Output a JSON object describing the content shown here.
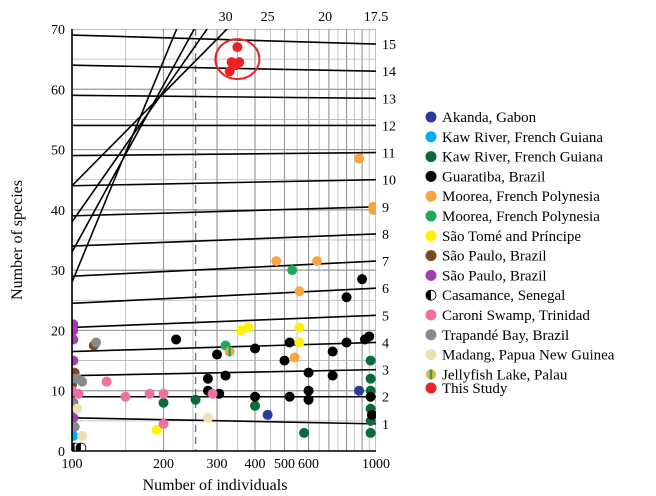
{
  "chart_data": {
    "type": "scatter",
    "xlabel": "Number of individuals",
    "ylabel": "Number of species",
    "x_scale": "log",
    "xlim": [
      100,
      1000
    ],
    "ylim": [
      0,
      70
    ],
    "x_ticks": [
      100,
      200,
      300,
      400,
      500,
      600,
      1000
    ],
    "x_tick_labels": [
      "100",
      "200",
      "300",
      "400",
      "500",
      "600",
      "1000"
    ],
    "y_ticks": [
      0,
      10,
      20,
      30,
      40,
      50,
      60,
      70
    ],
    "y_tick_labels": [
      "0",
      "10",
      "20",
      "30",
      "40",
      "50",
      "60",
      "70"
    ],
    "isolines": {
      "right_labels": [
        "1",
        "2",
        "3",
        "4",
        "5",
        "6",
        "7",
        "8",
        "9",
        "10",
        "11",
        "12",
        "13",
        "14",
        "15"
      ],
      "top_labels": [
        {
          "label": "30",
          "x": 320
        },
        {
          "label": "25",
          "x": 440
        },
        {
          "label": "20",
          "x": 680
        },
        {
          "label": "17.5",
          "x": 1000
        }
      ]
    },
    "dashed_reference_x": 255,
    "highlight_circle": {
      "x": 350,
      "y": 65
    },
    "grid": true,
    "legend_position": "right",
    "series": [
      {
        "name": "Akanda, Gabon",
        "color": "#2e3a9a",
        "points": [
          [
            440,
            6
          ],
          [
            880,
            10
          ]
        ]
      },
      {
        "name": "Kaw River, French Guiana",
        "color": "#00aeef",
        "points": [
          [
            101,
            2.5
          ]
        ]
      },
      {
        "name": "Kaw River, French Guiana",
        "color": "#0b6a3c",
        "points": [
          [
            200,
            8
          ],
          [
            255,
            8.5
          ],
          [
            400,
            7.5
          ],
          [
            580,
            3
          ],
          [
            960,
            15
          ],
          [
            960,
            12
          ],
          [
            960,
            10
          ],
          [
            960,
            7
          ],
          [
            960,
            5
          ],
          [
            960,
            3
          ]
        ]
      },
      {
        "name": "Guaratiba, Brazil",
        "color": "#000000",
        "points": [
          [
            220,
            18.5
          ],
          [
            280,
            12
          ],
          [
            280,
            10
          ],
          [
            300,
            16
          ],
          [
            305,
            9.5
          ],
          [
            320,
            12.5
          ],
          [
            400,
            17
          ],
          [
            400,
            9
          ],
          [
            500,
            15
          ],
          [
            520,
            18
          ],
          [
            520,
            9
          ],
          [
            600,
            13
          ],
          [
            600,
            10
          ],
          [
            600,
            8.5
          ],
          [
            720,
            16.5
          ],
          [
            720,
            12.5
          ],
          [
            800,
            18
          ],
          [
            800,
            25.5
          ],
          [
            900,
            28.5
          ],
          [
            920,
            18.5
          ],
          [
            950,
            19
          ],
          [
            970,
            6
          ],
          [
            960,
            9
          ]
        ]
      },
      {
        "name": "Moorea, French Polynesia",
        "color": "#f7a540",
        "points": [
          [
            470,
            31.5
          ],
          [
            540,
            15.5
          ],
          [
            560,
            26.5
          ],
          [
            640,
            31.5
          ],
          [
            880,
            48.5
          ],
          [
            980,
            40.5
          ],
          [
            980,
            40
          ]
        ]
      },
      {
        "name": "Moorea, French Polynesia",
        "color": "#1ea85a",
        "points": [
          [
            320,
            17.5
          ],
          [
            530,
            30
          ]
        ]
      },
      {
        "name": "São Tomé and Príncipe",
        "color": "#fff200",
        "points": [
          [
            190,
            3.5
          ],
          [
            360,
            20
          ],
          [
            380,
            20.5
          ],
          [
            560,
            20.5
          ],
          [
            560,
            18
          ]
        ]
      },
      {
        "name": "São Paulo, Brazil",
        "color": "#7b4a1e",
        "points": [
          [
            100,
            13
          ],
          [
            100,
            11
          ],
          [
            100,
            9.5
          ],
          [
            100,
            7
          ],
          [
            102,
            13
          ],
          [
            118,
            17.5
          ]
        ]
      },
      {
        "name": "São Paulo, Brazil",
        "color": "#a33db4",
        "points": [
          [
            101,
            21
          ],
          [
            101,
            20
          ],
          [
            101,
            18.5
          ],
          [
            101,
            15
          ],
          [
            101,
            8
          ],
          [
            101,
            5.5
          ]
        ]
      },
      {
        "name": "Casamance, Senegal",
        "color": "#000000",
        "points": [
          [
            102,
            0.5
          ],
          [
            107,
            0.5
          ]
        ]
      },
      {
        "name": "Caroni Swamp, Trinidad",
        "color": "#f06fa3",
        "points": [
          [
            100,
            10
          ],
          [
            105,
            9.5
          ],
          [
            130,
            11.5
          ],
          [
            150,
            9
          ],
          [
            180,
            9.5
          ],
          [
            200,
            9.5
          ],
          [
            200,
            4.5
          ],
          [
            290,
            9.5
          ]
        ]
      },
      {
        "name": "Trapandé Bay,  Brazil",
        "color": "#8a8a8a",
        "points": [
          [
            100,
            12
          ],
          [
            104,
            12
          ],
          [
            108,
            11.5
          ],
          [
            120,
            18
          ],
          [
            100,
            8
          ],
          [
            102,
            4
          ]
        ]
      },
      {
        "name": "Madang, Papua New Guinea",
        "color": "#f2dfb0",
        "points": [
          [
            104,
            7
          ],
          [
            108,
            2.5
          ],
          [
            280,
            5.5
          ]
        ]
      },
      {
        "name": "Jellyfish Lake, Palau",
        "color": "#f7a540",
        "points": [
          [
            330,
            16.5
          ]
        ]
      },
      {
        "name": "This Study",
        "color": "#ed2024",
        "points": [
          [
            330,
            63
          ],
          [
            335,
            64.5
          ],
          [
            345,
            64
          ],
          [
            350,
            67
          ],
          [
            355,
            64.5
          ]
        ]
      }
    ]
  }
}
